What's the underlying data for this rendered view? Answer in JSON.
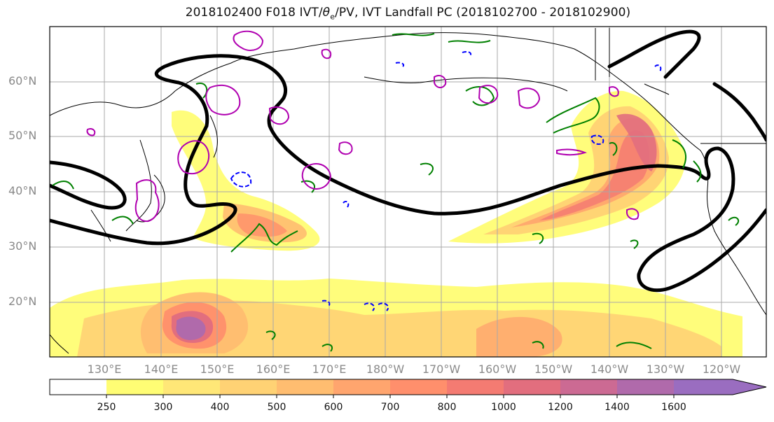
{
  "title": {
    "prefix": "2018102400 F018 IVT/",
    "theta": "θ",
    "sub": "e",
    "suffix": "/PV, IVT Landfall PC (2018102700 - 2018102900)"
  },
  "map": {
    "lat_labels": [
      "60°N",
      "50°N",
      "40°N",
      "30°N",
      "20°N"
    ],
    "lon_labels": [
      "130°E",
      "140°E",
      "150°E",
      "160°E",
      "170°E",
      "180°W",
      "170°W",
      "160°W",
      "150°W",
      "140°W",
      "130°W",
      "120°W"
    ],
    "colors": {
      "land_outline": "#000000",
      "pc_contour": "#000000",
      "theta_e_contour": "#008000",
      "pv_contour_neg": "#0000ff",
      "pv_contour_pos": "#b000b0"
    }
  },
  "colorbar": {
    "levels": [
      "250",
      "300",
      "400",
      "500",
      "600",
      "700",
      "800",
      "1000",
      "1200",
      "1400",
      "1600"
    ],
    "colors": [
      "#ffffff",
      "#fffd74",
      "#ffe777",
      "#ffd274",
      "#ffbd70",
      "#ffa56e",
      "#ff8f6c",
      "#f47b72",
      "#e26e7e",
      "#cc6a93",
      "#b06aab",
      "#9a6dc0"
    ]
  }
}
